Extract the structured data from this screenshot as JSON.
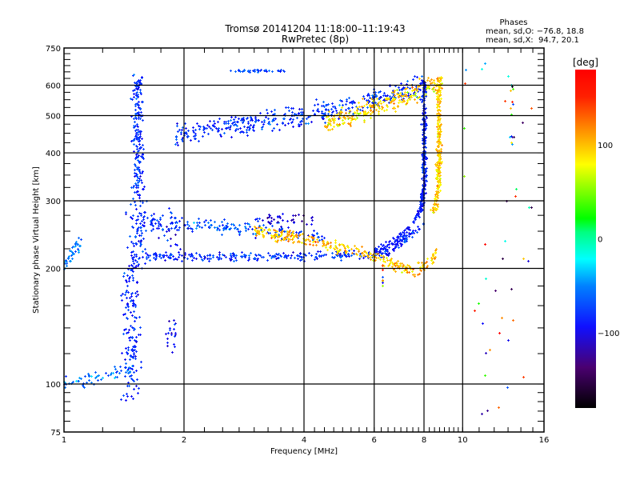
{
  "chart_data": {
    "type": "scatter",
    "title": "Tromsø 20141204 11:18:00–11:19:43",
    "subtitle": "RwPretec (8p)",
    "xlabel": "Frequency [MHz]",
    "ylabel": "Stationary phase Virtual Height [km]",
    "xscale": "log",
    "yscale": "log",
    "xlim": [
      1,
      16
    ],
    "ylim": [
      75,
      750
    ],
    "xticks": [
      1,
      2,
      4,
      6,
      8,
      10,
      16
    ],
    "xtick_labels": [
      "1",
      "2",
      "4",
      "6",
      "8",
      "10",
      "16"
    ],
    "yticks": [
      75,
      100,
      200,
      300,
      400,
      500,
      600,
      750
    ],
    "ytick_labels": [
      "75",
      "100",
      "200",
      "300",
      "400",
      "500",
      "600",
      "750"
    ],
    "grid": true,
    "x_gridlines": [
      2,
      4,
      6,
      8,
      10
    ],
    "y_gridlines": [
      100,
      200,
      300,
      400,
      500,
      600
    ],
    "phase_stats": {
      "heading": "Phases",
      "line_O": "mean, sd,O: −76.8, 18.8",
      "line_X": "mean, sd,X:  94.7, 20.1",
      "O_mean": -76.8,
      "O_sd": 18.8,
      "X_mean": 94.7,
      "X_sd": 20.1
    },
    "colorbar": {
      "label": "[deg]",
      "range": [
        -180,
        180
      ],
      "ticks": [
        100,
        0,
        -100
      ],
      "tick_labels": [
        "100",
        "0",
        "−100"
      ],
      "colormap": "rainbow (black → purple → blue → cyan → green → yellow → orange → red)"
    },
    "traces": [
      {
        "name": "E-region echo near 1 MHz",
        "mode": "O",
        "freq_range": [
          1.0,
          1.1
        ],
        "height_range": [
          195,
          240
        ],
        "phase_deg": -60
      },
      {
        "name": "low-altitude trace near 100 km",
        "mode": "O",
        "freq_range": [
          1.0,
          1.5
        ],
        "height_range": [
          97,
          115
        ],
        "phase_deg": -65
      },
      {
        "name": "vertical spread near 1.5 MHz",
        "mode": "O",
        "freq_range": [
          1.45,
          1.65
        ],
        "height_range": [
          90,
          640
        ],
        "phase_deg": -80
      },
      {
        "name": "F1 O-mode trace",
        "mode": "O",
        "freq_range": [
          1.5,
          8.0
        ],
        "height_range": [
          210,
          280
        ],
        "phase_deg": -75
      },
      {
        "name": "F1 X-mode trace",
        "mode": "X",
        "freq_range": [
          3.0,
          8.6
        ],
        "height_range": [
          220,
          270
        ],
        "phase_deg": 95
      },
      {
        "name": "F2 O-mode upper trace",
        "mode": "O",
        "freq_range": [
          1.9,
          8.2
        ],
        "height_range": [
          430,
          630
        ],
        "phase_deg": -80
      },
      {
        "name": "F2 X-mode upper trace",
        "mode": "X",
        "freq_range": [
          4.5,
          8.9
        ],
        "height_range": [
          440,
          630
        ],
        "phase_deg": 95
      },
      {
        "name": "O-mode cusp (foF2)",
        "mode": "O",
        "freq": 8.0,
        "height_range": [
          280,
          620
        ],
        "phase_deg": -85
      },
      {
        "name": "X-mode cusp (fxF2)",
        "mode": "X",
        "freq": 8.7,
        "height_range": [
          280,
          630
        ],
        "phase_deg": 95
      },
      {
        "name": "sporadic echo band near 2.8 MHz",
        "mode": "O",
        "freq_range": [
          2.6,
          3.6
        ],
        "height_range": [
          650,
          660
        ],
        "phase_deg": -65
      }
    ]
  }
}
